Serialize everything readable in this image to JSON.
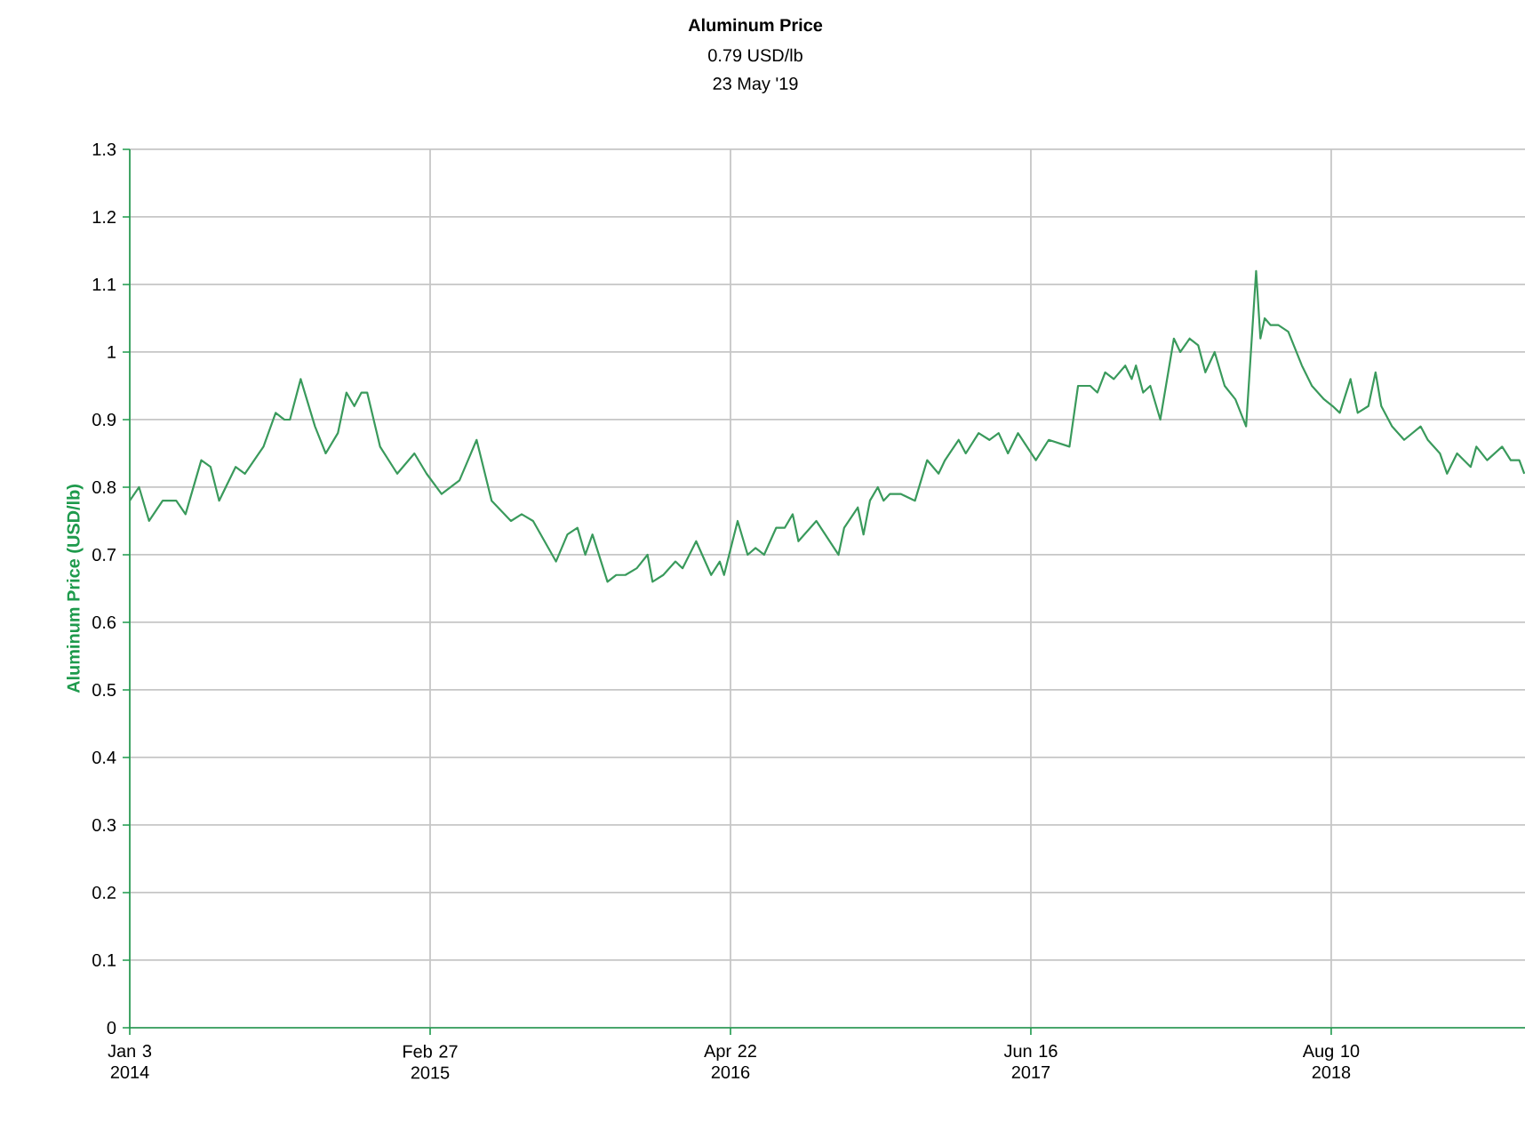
{
  "chart_data": {
    "type": "line",
    "title": "Aluminum Price",
    "subtitle": "0.79 USD/lb",
    "annotations": [
      "23 May '19"
    ],
    "ylabel": "Aluminum Price (USD/lb)",
    "xlim": [
      "2014-01-03",
      "2019-05-08"
    ],
    "xticks": [
      {
        "value": "2014-01-03",
        "label": "Jan 3 2014"
      },
      {
        "value": "2015-02-27",
        "label": "Feb 27 2015"
      },
      {
        "value": "2016-04-22",
        "label": "Apr 22 2016"
      },
      {
        "value": "2017-06-16",
        "label": "Jun 16 2017"
      },
      {
        "value": "2018-08-10",
        "label": "Aug 10 2018"
      }
    ],
    "ylim": [
      0,
      1.3
    ],
    "yticks": [
      0,
      0.1,
      0.2,
      0.3,
      0.4,
      0.5,
      0.6,
      0.7,
      0.8,
      0.9,
      1,
      1.1,
      1.2,
      1.3
    ],
    "grid": true,
    "series": [
      {
        "color": "#3a9a5c",
        "x": [
          "2014-01-03",
          "2014-01-16",
          "2014-01-30",
          "2014-02-18",
          "2014-03-09",
          "2014-03-22",
          "2014-04-13",
          "2014-04-26",
          "2014-05-08",
          "2014-05-31",
          "2014-06-13",
          "2014-07-09",
          "2014-07-26",
          "2014-08-07",
          "2014-08-15",
          "2014-08-30",
          "2014-09-19",
          "2014-10-04",
          "2014-10-21",
          "2014-11-02",
          "2014-11-13",
          "2014-11-23",
          "2014-12-01",
          "2014-12-19",
          "2015-01-12",
          "2015-02-05",
          "2015-02-22",
          "2015-03-15",
          "2015-04-09",
          "2015-04-21",
          "2015-05-03",
          "2015-05-24",
          "2015-06-20",
          "2015-07-05",
          "2015-07-21",
          "2015-08-22",
          "2015-09-07",
          "2015-09-21",
          "2015-10-02",
          "2015-10-12",
          "2015-11-02",
          "2015-11-14",
          "2015-11-27",
          "2015-12-13",
          "2015-12-28",
          "2016-01-04",
          "2016-01-19",
          "2016-02-05",
          "2016-02-15",
          "2016-03-05",
          "2016-03-26",
          "2016-04-07",
          "2016-04-13",
          "2016-05-02",
          "2016-05-16",
          "2016-05-27",
          "2016-06-08",
          "2016-06-25",
          "2016-07-07",
          "2016-07-18",
          "2016-07-26",
          "2016-08-20",
          "2016-09-20",
          "2016-09-28",
          "2016-10-17",
          "2016-10-25",
          "2016-11-03",
          "2016-11-14",
          "2016-11-22",
          "2016-12-01",
          "2016-12-16",
          "2017-01-05",
          "2017-01-22",
          "2017-02-07",
          "2017-02-16",
          "2017-03-07",
          "2017-03-17",
          "2017-04-04",
          "2017-04-19",
          "2017-05-02",
          "2017-05-15",
          "2017-05-29",
          "2017-06-23",
          "2017-07-11",
          "2017-08-09",
          "2017-08-21",
          "2017-09-07",
          "2017-09-17",
          "2017-09-28",
          "2017-10-10",
          "2017-10-26",
          "2017-11-04",
          "2017-11-10",
          "2017-11-20",
          "2017-11-30",
          "2017-12-14",
          "2018-01-02",
          "2018-01-11",
          "2018-01-24",
          "2018-02-05",
          "2018-02-15",
          "2018-02-28",
          "2018-03-14",
          "2018-03-29",
          "2018-04-13",
          "2018-04-27",
          "2018-05-03",
          "2018-05-09",
          "2018-05-17",
          "2018-05-28",
          "2018-06-11",
          "2018-06-30",
          "2018-07-14",
          "2018-07-31",
          "2018-08-12",
          "2018-08-22",
          "2018-09-06",
          "2018-09-16",
          "2018-10-01",
          "2018-10-11",
          "2018-10-19",
          "2018-11-03",
          "2018-11-20",
          "2018-12-13",
          "2018-12-23",
          "2019-01-09",
          "2019-01-19",
          "2019-02-02",
          "2019-02-21",
          "2019-03-01",
          "2019-03-16",
          "2019-04-06",
          "2019-04-18",
          "2019-04-30",
          "2019-05-07"
        ],
        "values": [
          0.78,
          0.8,
          0.75,
          0.78,
          0.78,
          0.76,
          0.84,
          0.83,
          0.78,
          0.83,
          0.82,
          0.86,
          0.91,
          0.9,
          0.9,
          0.96,
          0.89,
          0.85,
          0.88,
          0.94,
          0.92,
          0.94,
          0.94,
          0.86,
          0.82,
          0.85,
          0.82,
          0.79,
          0.81,
          0.84,
          0.87,
          0.78,
          0.75,
          0.76,
          0.75,
          0.69,
          0.73,
          0.74,
          0.7,
          0.73,
          0.66,
          0.67,
          0.67,
          0.68,
          0.7,
          0.66,
          0.67,
          0.69,
          0.68,
          0.72,
          0.67,
          0.69,
          0.67,
          0.75,
          0.7,
          0.71,
          0.7,
          0.74,
          0.74,
          0.76,
          0.72,
          0.75,
          0.7,
          0.74,
          0.77,
          0.73,
          0.78,
          0.8,
          0.78,
          0.79,
          0.79,
          0.78,
          0.84,
          0.82,
          0.84,
          0.87,
          0.85,
          0.88,
          0.87,
          0.88,
          0.85,
          0.88,
          0.84,
          0.87,
          0.86,
          0.95,
          0.95,
          0.94,
          0.97,
          0.96,
          0.98,
          0.96,
          0.98,
          0.94,
          0.95,
          0.9,
          1.02,
          1.0,
          1.02,
          1.01,
          0.97,
          1.0,
          0.95,
          0.93,
          0.89,
          1.12,
          1.02,
          1.05,
          1.04,
          1.04,
          1.03,
          0.98,
          0.95,
          0.93,
          0.92,
          0.91,
          0.96,
          0.91,
          0.92,
          0.97,
          0.92,
          0.89,
          0.87,
          0.89,
          0.87,
          0.85,
          0.82,
          0.85,
          0.83,
          0.86,
          0.84,
          0.86,
          0.84,
          0.84,
          0.82
        ]
      }
    ]
  }
}
